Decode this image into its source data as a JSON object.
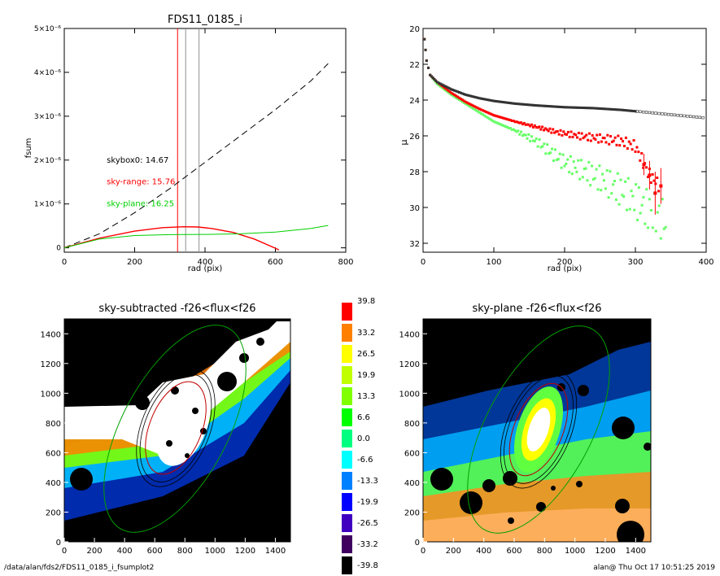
{
  "footer": {
    "left": "/data/alan/fds2/FDS11_0185_i_fsumplot2",
    "right": "alan@  Thu Oct 17 10:51:25 2019"
  },
  "colors": {
    "black": "#000000",
    "red": "#ff0000",
    "green": "#00d000",
    "light_green": "#66ff66",
    "gray": "#909090",
    "dark_gray": "#333333"
  },
  "chart_data": [
    {
      "id": "fsum",
      "type": "line",
      "title": "FDS11_0185_i",
      "xlabel": "rad (pix)",
      "ylabel": "fsum",
      "xlim": [
        0,
        800
      ],
      "ylim": [
        -1e-07,
        5e-06
      ],
      "xticks": [
        0,
        200,
        400,
        600,
        800
      ],
      "yticks": [
        {
          "v": 0,
          "label": "0"
        },
        {
          "v": 1e-06,
          "label": "1×10⁻⁶"
        },
        {
          "v": 2e-06,
          "label": "2×10⁻⁶"
        },
        {
          "v": 3e-06,
          "label": "3×10⁻⁶"
        },
        {
          "v": 4e-06,
          "label": "4×10⁻⁶"
        },
        {
          "v": 5e-06,
          "label": "5×10⁻⁶"
        }
      ],
      "series": [
        {
          "style": "black-dashed",
          "x": [
            0,
            100,
            200,
            300,
            400,
            500,
            600,
            700,
            750
          ],
          "y": [
            0,
            3.2e-07,
            8e-07,
            1.35e-06,
            1.95e-06,
            2.55e-06,
            3.15e-06,
            3.8e-06,
            4.2e-06
          ]
        },
        {
          "style": "red",
          "x": [
            0,
            100,
            200,
            280,
            340,
            380,
            420,
            480,
            540,
            600,
            610
          ],
          "y": [
            0,
            2.2e-07,
            3.8e-07,
            4.6e-07,
            4.8e-07,
            4.75e-07,
            4.4e-07,
            3.5e-07,
            2e-07,
            -1e-08,
            -5e-08
          ]
        },
        {
          "style": "green",
          "x": [
            0,
            100,
            200,
            300,
            400,
            500,
            600,
            700,
            750
          ],
          "y": [
            0,
            2e-07,
            2.8e-07,
            3e-07,
            3.05e-07,
            3.2e-07,
            3.6e-07,
            4.4e-07,
            5.1e-07
          ]
        }
      ],
      "vlines": [
        {
          "x": 322,
          "color": "red"
        },
        {
          "x": 345,
          "color": "gray"
        },
        {
          "x": 383,
          "color": "gray"
        }
      ],
      "annotations": [
        {
          "text": "skybox0: 14.67",
          "x": 190,
          "y": 2e-06,
          "color": "black"
        },
        {
          "text": "sky-range: 15.76",
          "x": 190,
          "y": 1.5e-06,
          "color": "red"
        },
        {
          "text": "sky-plane: 16.25",
          "x": 190,
          "y": 1e-06,
          "color": "green"
        }
      ]
    },
    {
      "id": "profile",
      "type": "scatter",
      "xlabel": "rad (pix)",
      "ylabel": "μ",
      "xlim": [
        0,
        400
      ],
      "ylim": [
        32.5,
        20
      ],
      "xticks": [
        0,
        100,
        200,
        300,
        400
      ],
      "yticks": [
        20,
        22,
        24,
        26,
        28,
        30,
        32
      ],
      "series": [
        {
          "style": "dark-gray",
          "x": [
            2,
            5,
            10,
            20,
            40,
            60,
            80,
            100,
            130,
            160,
            200,
            240,
            280,
            320,
            360,
            400
          ],
          "y": [
            20.6,
            21.8,
            22.6,
            23.0,
            23.4,
            23.7,
            23.9,
            24.05,
            24.2,
            24.3,
            24.4,
            24.45,
            24.55,
            24.7,
            24.85,
            25.0
          ]
        },
        {
          "style": "red",
          "x": [
            2,
            5,
            10,
            20,
            40,
            60,
            80,
            100,
            130,
            160,
            190,
            220,
            250,
            280,
            300,
            320,
            335
          ],
          "y": [
            20.6,
            21.8,
            22.6,
            23.0,
            23.6,
            24.1,
            24.5,
            24.85,
            25.2,
            25.5,
            25.8,
            26.0,
            26.15,
            26.3,
            26.6,
            28.2,
            28.8
          ]
        },
        {
          "style": "green",
          "x": [
            2,
            5,
            10,
            20,
            40,
            60,
            80,
            100,
            130,
            160,
            180,
            200,
            230,
            260,
            290,
            320,
            345
          ],
          "y": [
            20.6,
            21.8,
            22.6,
            23.1,
            23.7,
            24.2,
            24.7,
            25.2,
            25.7,
            26.3,
            26.9,
            27.5,
            28.0,
            28.6,
            29.3,
            30.2,
            30.8
          ]
        }
      ],
      "errorbars": [
        {
          "x": 312,
          "y": 27.6,
          "err": 0.6
        },
        {
          "x": 320,
          "y": 28.2,
          "err": 0.8
        },
        {
          "x": 328,
          "y": 29.2,
          "err": 1.2
        },
        {
          "x": 336,
          "y": 28.8,
          "err": 1.0
        }
      ]
    },
    {
      "id": "img_sky_subtracted",
      "type": "heatmap",
      "title": "sky-subtracted -f26<flux<f26",
      "xlim": [
        0,
        1500
      ],
      "ylim": [
        0,
        1500
      ],
      "xticks": [
        0,
        200,
        400,
        600,
        800,
        1000,
        1200,
        1400
      ],
      "yticks": [
        0,
        200,
        400,
        600,
        800,
        1000,
        1200,
        1400
      ]
    },
    {
      "id": "img_sky_plane",
      "type": "heatmap",
      "title": "sky-plane -f26<flux<f26",
      "xlim": [
        0,
        1500
      ],
      "ylim": [
        0,
        1500
      ],
      "xticks": [
        0,
        200,
        400,
        600,
        800,
        1000,
        1200,
        1400
      ],
      "yticks": [
        0,
        200,
        400,
        600,
        800,
        1000,
        1200,
        1400
      ]
    },
    {
      "id": "colorbar",
      "type": "heatmap",
      "levels": [
        {
          "label": "39.8",
          "color": "#ff0000"
        },
        {
          "label": "33.2",
          "color": "#ff8000"
        },
        {
          "label": "26.5",
          "color": "#ffff00"
        },
        {
          "label": "19.9",
          "color": "#c0ff00"
        },
        {
          "label": "13.3",
          "color": "#80ff00"
        },
        {
          "label": "6.6",
          "color": "#00ff00"
        },
        {
          "label": "0.0",
          "color": "#00ff80"
        },
        {
          "label": "-6.6",
          "color": "#00ffff"
        },
        {
          "label": "-13.3",
          "color": "#0080ff"
        },
        {
          "label": "-19.9",
          "color": "#0000ff"
        },
        {
          "label": "-26.5",
          "color": "#4000c0"
        },
        {
          "label": "-33.2",
          "color": "#400060"
        },
        {
          "label": "-39.8",
          "color": "#000000"
        }
      ]
    }
  ]
}
